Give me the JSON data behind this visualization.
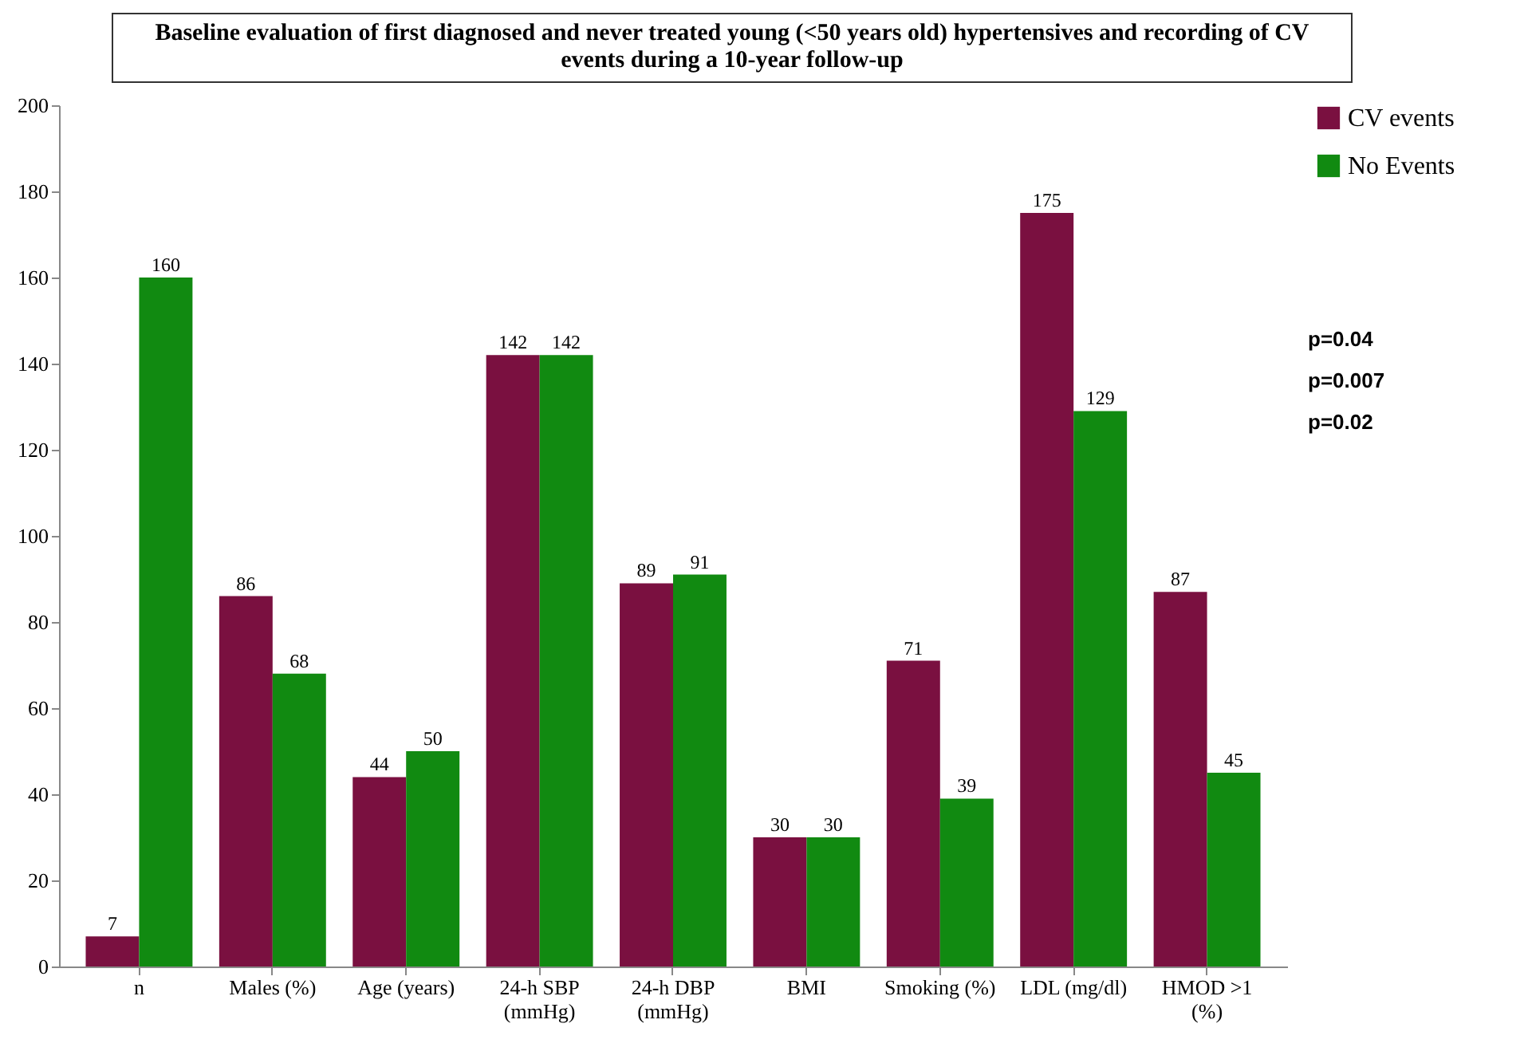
{
  "chart_data": {
    "type": "bar",
    "title": "Baseline evaluation of first diagnosed and never treated young (<50 years old) hypertensives and recording of CV events during a 10-year follow-up",
    "categories": [
      "n",
      "Males (%)",
      "Age (years)",
      "24-h SBP (mmHg)",
      "24-h DBP (mmHg)",
      "BMI",
      "Smoking (%)",
      "LDL (mg/dl)",
      "HMOD >1 (%)"
    ],
    "series": [
      {
        "name": "CV events",
        "color": "#7a1040",
        "values": [
          7,
          86,
          44,
          142,
          89,
          30,
          71,
          175,
          87
        ]
      },
      {
        "name": "No Events",
        "color": "#118a11",
        "values": [
          160,
          68,
          50,
          142,
          91,
          30,
          39,
          129,
          45
        ]
      }
    ],
    "ylim": [
      0,
      200
    ],
    "yticks": [
      0,
      20,
      40,
      60,
      80,
      100,
      120,
      140,
      160,
      180,
      200
    ],
    "data_labels": true,
    "legend": "right",
    "grid": false,
    "annotations": [
      "p=0.04",
      "p=0.007",
      "p=0.02"
    ]
  }
}
